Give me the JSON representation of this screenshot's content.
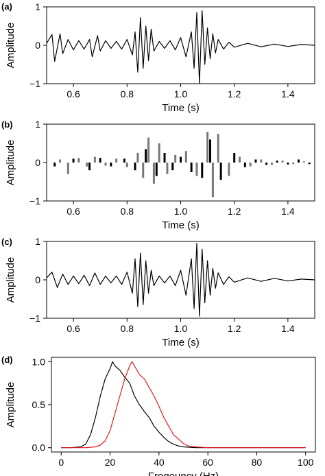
{
  "chart_data": [
    {
      "panel": "(a)",
      "type": "line",
      "xlabel": "Time (s)",
      "ylabel": "Amplitude",
      "xlim": [
        0.5,
        1.5
      ],
      "ylim": [
        -1,
        1
      ],
      "x_ticks": [
        "0.6",
        "0.8",
        "1.0",
        "1.2",
        "1.4"
      ],
      "y_ticks": [
        "−1",
        "0",
        "1"
      ],
      "series": [
        {
          "color": "#000000",
          "x": [
            0.5,
            0.52,
            0.53,
            0.55,
            0.56,
            0.58,
            0.6,
            0.62,
            0.64,
            0.66,
            0.67,
            0.69,
            0.7,
            0.72,
            0.74,
            0.76,
            0.78,
            0.8,
            0.82,
            0.83,
            0.84,
            0.85,
            0.86,
            0.87,
            0.88,
            0.89,
            0.9,
            0.92,
            0.94,
            0.96,
            0.98,
            1.0,
            1.02,
            1.04,
            1.05,
            1.06,
            1.07,
            1.08,
            1.09,
            1.1,
            1.11,
            1.12,
            1.13,
            1.14,
            1.16,
            1.18,
            1.2,
            1.25,
            1.3,
            1.35,
            1.4,
            1.45,
            1.5
          ],
          "y": [
            0.05,
            0.28,
            -0.42,
            0.3,
            -0.22,
            0.15,
            -0.12,
            0.12,
            -0.1,
            0.15,
            -0.3,
            0.25,
            -0.15,
            0.12,
            -0.08,
            0.1,
            -0.1,
            0.15,
            -0.25,
            0.35,
            -0.7,
            0.72,
            -0.6,
            0.5,
            -0.4,
            0.42,
            -0.15,
            0.1,
            -0.08,
            0.12,
            -0.12,
            0.2,
            -0.3,
            0.35,
            -0.6,
            0.85,
            -1.0,
            0.9,
            -0.5,
            0.45,
            -0.35,
            0.3,
            -0.2,
            0.15,
            -0.1,
            0.08,
            -0.05,
            0.05,
            -0.04,
            0.03,
            -0.03,
            0.02,
            0.0
          ]
        }
      ]
    },
    {
      "panel": "(b)",
      "type": "bar",
      "xlabel": "Time (s)",
      "ylabel": "Amplitude",
      "xlim": [
        0.5,
        1.5
      ],
      "ylim": [
        -1,
        1
      ],
      "x_ticks": [
        "0.6",
        "0.8",
        "1.0",
        "1.2",
        "1.4"
      ],
      "y_ticks": [
        "−1",
        "0",
        "1"
      ],
      "series": [
        {
          "color": "#777777",
          "x": [
            0.55,
            0.58,
            0.62,
            0.65,
            0.68,
            0.72,
            0.76,
            0.8,
            0.84,
            0.86,
            0.88,
            0.9,
            0.92,
            0.95,
            0.98,
            1.02,
            1.06,
            1.1,
            1.12,
            1.14,
            1.18,
            1.22,
            1.26,
            1.3,
            1.34,
            1.38,
            1.42,
            1.46
          ],
          "y": [
            0.08,
            -0.3,
            0.12,
            -0.1,
            0.15,
            -0.08,
            0.1,
            -0.12,
            0.25,
            -0.4,
            0.65,
            -0.55,
            0.5,
            -0.3,
            0.2,
            0.3,
            -0.35,
            0.8,
            -0.9,
            0.75,
            -0.35,
            0.15,
            -0.1,
            0.08,
            -0.06,
            0.05,
            -0.04,
            0.03
          ]
        },
        {
          "color": "#000000",
          "x": [
            0.53,
            0.6,
            0.66,
            0.7,
            0.74,
            0.79,
            0.83,
            0.87,
            0.91,
            0.94,
            0.97,
            1.0,
            1.04,
            1.08,
            1.11,
            1.15,
            1.2,
            1.24,
            1.28,
            1.32,
            1.36,
            1.4,
            1.44,
            1.48
          ],
          "y": [
            -0.1,
            0.1,
            -0.2,
            0.12,
            -0.1,
            0.1,
            -0.2,
            0.35,
            -0.35,
            0.25,
            -0.2,
            0.15,
            -0.25,
            -0.4,
            0.6,
            -0.45,
            0.25,
            -0.12,
            0.08,
            -0.06,
            0.05,
            -0.05,
            0.08,
            -0.04
          ]
        }
      ]
    },
    {
      "panel": "(c)",
      "type": "line",
      "xlabel": "Time (s)",
      "ylabel": "Amplitude",
      "xlim": [
        0.5,
        1.5
      ],
      "ylim": [
        -1,
        1
      ],
      "x_ticks": [
        "0.6",
        "0.8",
        "1.0",
        "1.2",
        "1.4"
      ],
      "y_ticks": [
        "−1",
        "0",
        "1"
      ],
      "series": [
        {
          "color": "#000000",
          "x": [
            0.5,
            0.52,
            0.54,
            0.56,
            0.58,
            0.6,
            0.62,
            0.64,
            0.66,
            0.68,
            0.7,
            0.72,
            0.74,
            0.76,
            0.78,
            0.8,
            0.82,
            0.83,
            0.84,
            0.85,
            0.86,
            0.87,
            0.88,
            0.89,
            0.9,
            0.92,
            0.94,
            0.96,
            0.98,
            1.0,
            1.02,
            1.04,
            1.05,
            1.06,
            1.07,
            1.08,
            1.09,
            1.1,
            1.11,
            1.12,
            1.13,
            1.14,
            1.16,
            1.18,
            1.2,
            1.25,
            1.3,
            1.35,
            1.4,
            1.45,
            1.5
          ],
          "y": [
            0.05,
            0.2,
            -0.2,
            0.15,
            -0.12,
            0.1,
            -0.1,
            0.12,
            -0.15,
            0.18,
            -0.12,
            0.1,
            -0.08,
            0.1,
            -0.12,
            0.2,
            -0.35,
            0.55,
            -0.7,
            0.7,
            -0.65,
            0.5,
            -0.35,
            0.25,
            -0.15,
            0.1,
            -0.08,
            0.1,
            -0.15,
            0.25,
            -0.4,
            0.55,
            -0.75,
            0.95,
            -0.95,
            0.8,
            -0.6,
            0.5,
            -0.4,
            0.3,
            -0.22,
            0.18,
            -0.12,
            0.08,
            -0.06,
            0.05,
            -0.04,
            0.04,
            -0.03,
            0.02,
            0.0
          ]
        }
      ]
    },
    {
      "panel": "(d)",
      "type": "line",
      "xlabel": "Freqeuncy (Hz)",
      "ylabel": "Amplitude",
      "xlim": [
        -4,
        104
      ],
      "ylim": [
        -0.05,
        1.05
      ],
      "x_ticks": [
        "0",
        "20",
        "40",
        "60",
        "80",
        "100"
      ],
      "y_ticks": [
        "0.0",
        "0.5",
        "1.0"
      ],
      "series": [
        {
          "color": "#000000",
          "x": [
            0,
            4,
            8,
            10,
            12,
            14,
            16,
            18,
            20,
            21,
            22,
            24,
            26,
            28,
            30,
            32,
            34,
            36,
            38,
            40,
            42,
            44,
            46,
            48,
            50,
            55,
            60,
            70,
            80,
            90,
            100
          ],
          "y": [
            0,
            0,
            0.01,
            0.04,
            0.15,
            0.35,
            0.6,
            0.8,
            0.92,
            1.0,
            0.95,
            0.9,
            0.82,
            0.75,
            0.6,
            0.5,
            0.42,
            0.35,
            0.25,
            0.18,
            0.12,
            0.07,
            0.04,
            0.02,
            0.01,
            0,
            0,
            0,
            0,
            0,
            0
          ]
        },
        {
          "color": "#e41a1c",
          "x": [
            0,
            10,
            14,
            16,
            18,
            20,
            22,
            24,
            26,
            28,
            29,
            30,
            32,
            34,
            36,
            38,
            40,
            42,
            44,
            46,
            48,
            50,
            52,
            55,
            60,
            70,
            80,
            90,
            100
          ],
          "y": [
            0,
            0,
            0.01,
            0.03,
            0.08,
            0.2,
            0.4,
            0.6,
            0.8,
            0.95,
            1.0,
            0.95,
            0.85,
            0.8,
            0.7,
            0.6,
            0.48,
            0.35,
            0.25,
            0.15,
            0.1,
            0.05,
            0.02,
            0.01,
            0,
            0,
            0,
            0,
            0
          ]
        }
      ]
    }
  ]
}
